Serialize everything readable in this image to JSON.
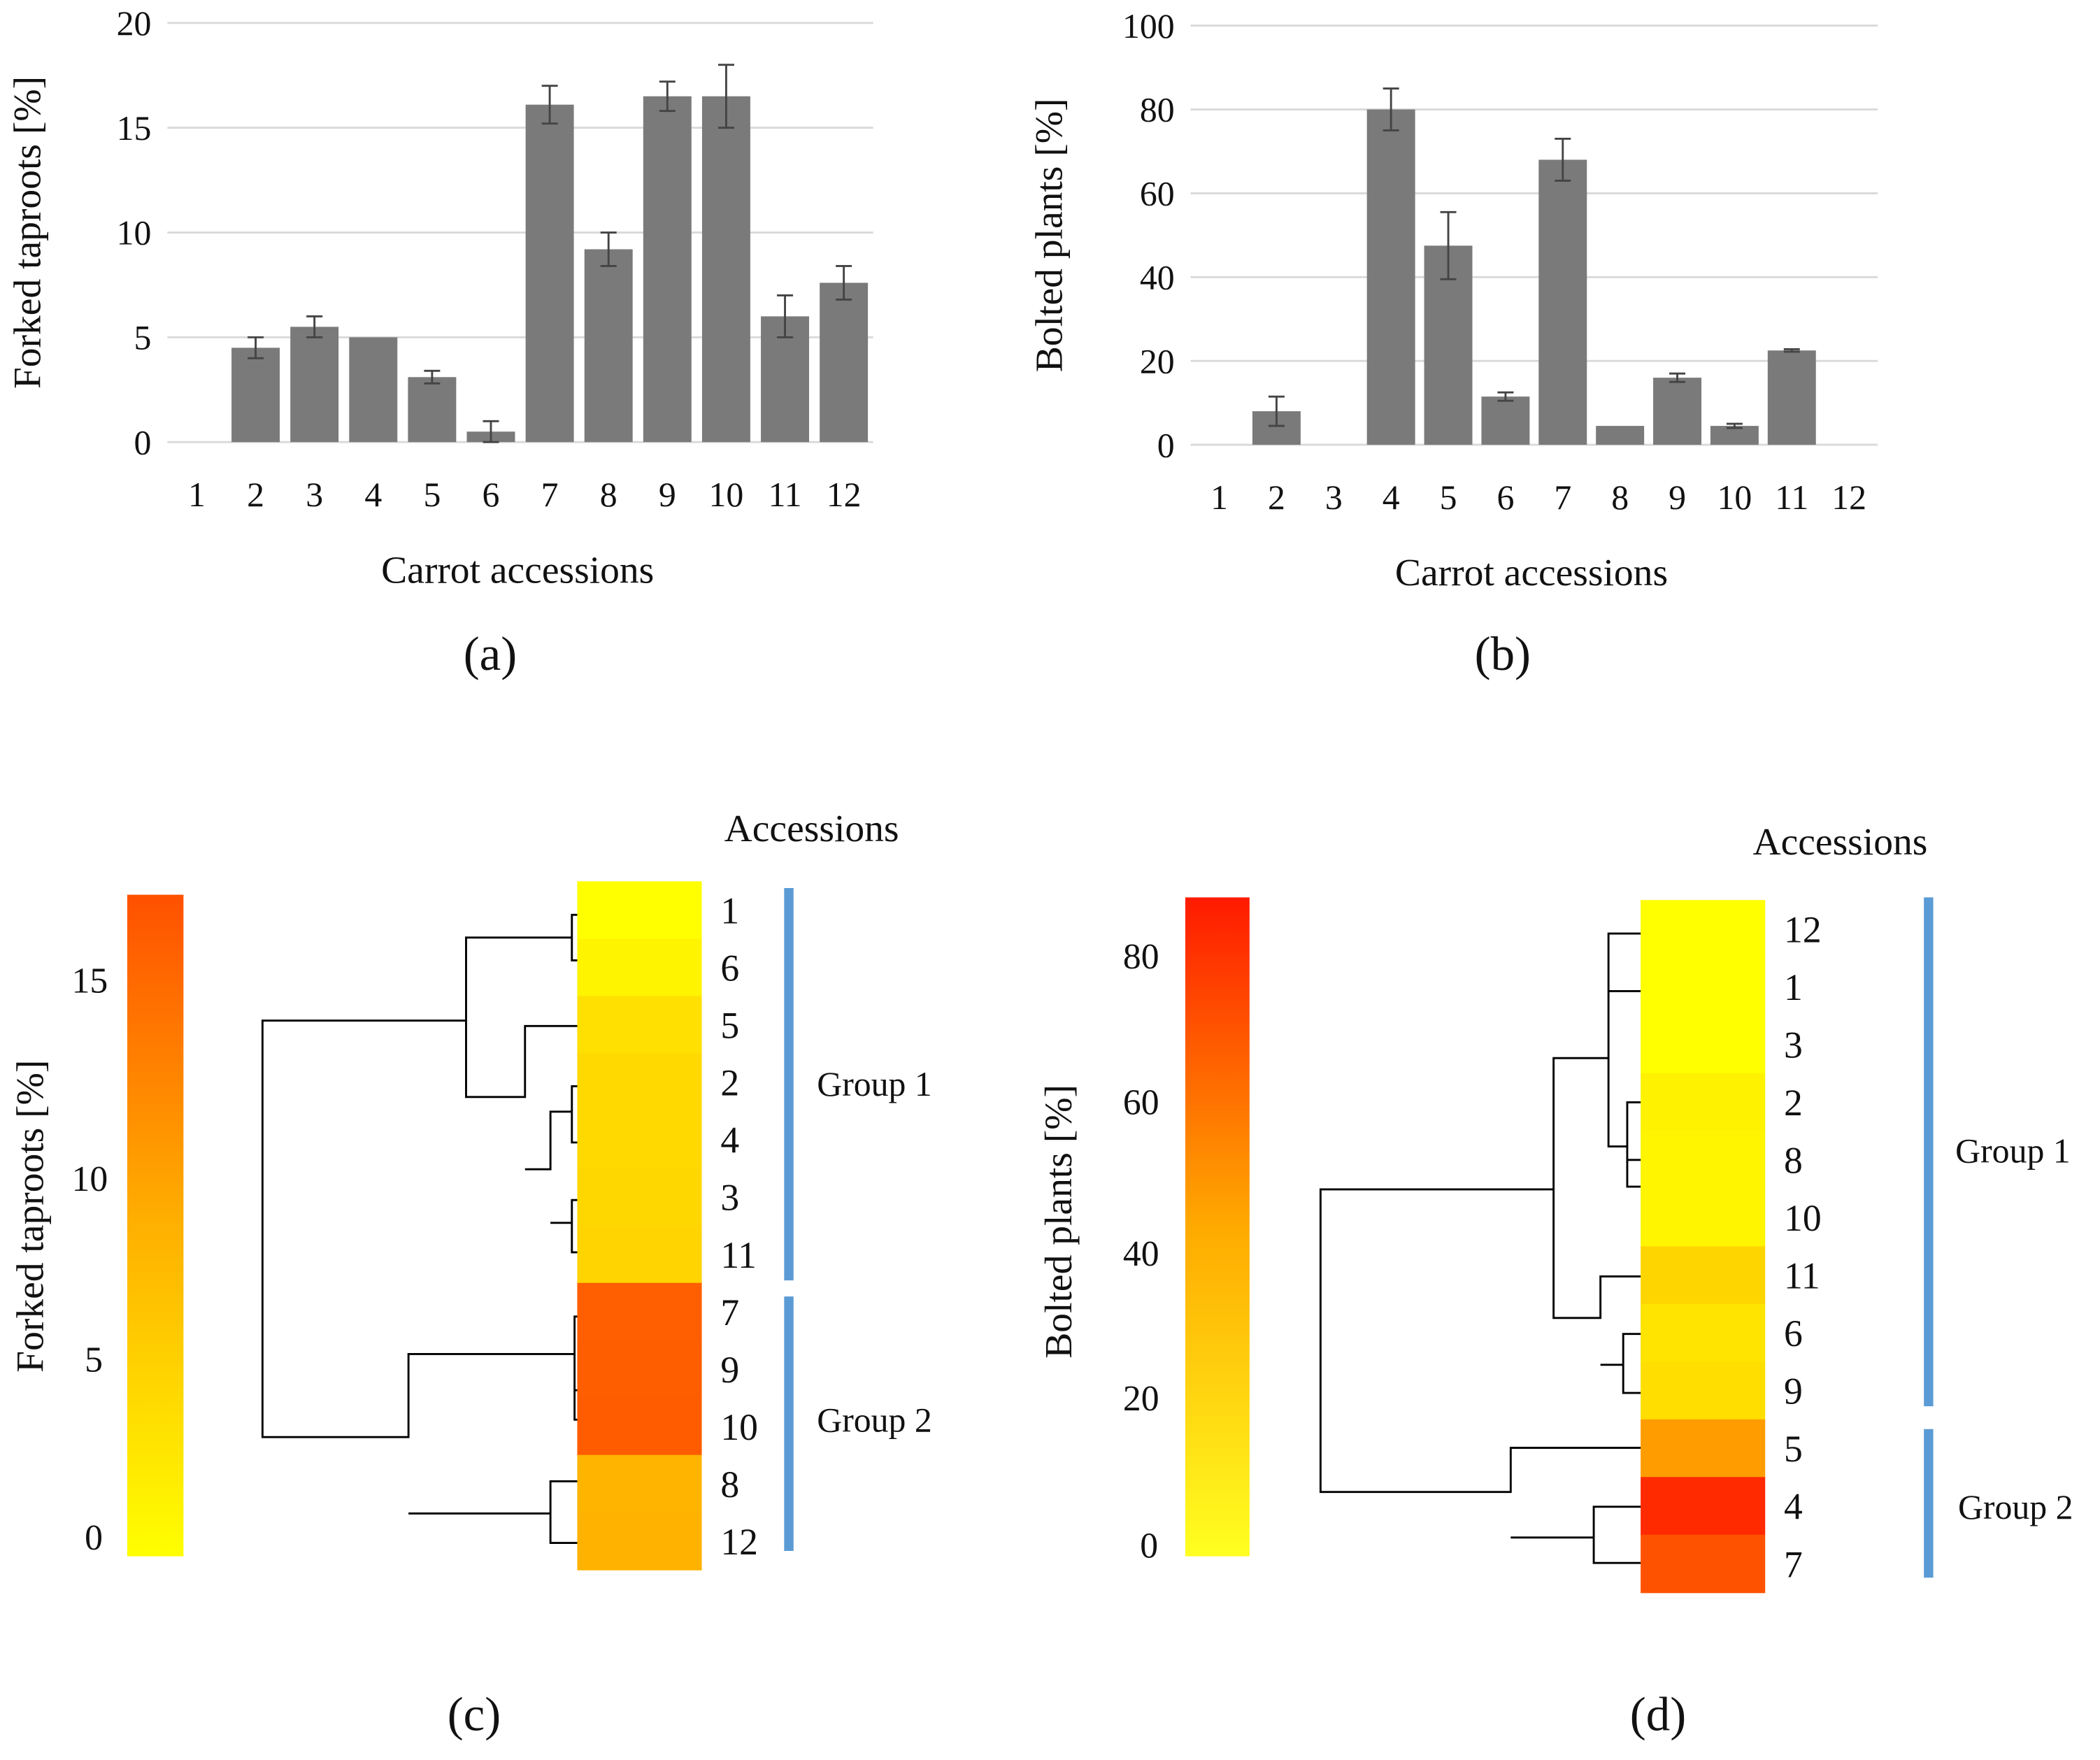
{
  "chart_data": [
    {
      "type": "bar",
      "panel": "(a)",
      "ylabel": "Forked taproots [%]",
      "xlabel": "Carrot accessions",
      "ylim": [
        0,
        20
      ],
      "yticks": [
        "0",
        "5",
        "10",
        "15",
        "20"
      ],
      "categories": [
        "1",
        "2",
        "3",
        "4",
        "5",
        "6",
        "7",
        "8",
        "9",
        "10",
        "11",
        "12"
      ],
      "values": [
        0,
        4.5,
        5.5,
        5.0,
        3.1,
        0.5,
        16.1,
        9.2,
        16.5,
        16.5,
        6.0,
        7.6
      ],
      "errors": [
        0,
        0.5,
        0.5,
        0,
        0.3,
        0.5,
        0.9,
        0.8,
        0.7,
        1.5,
        1.0,
        0.8
      ],
      "grid": true,
      "bar_color": "#7a7a7a"
    },
    {
      "type": "bar",
      "panel": "(b)",
      "ylabel": "Bolted plants [%]",
      "xlabel": "Carrot accessions",
      "ylim": [
        0,
        100
      ],
      "yticks": [
        "0",
        "20",
        "40",
        "60",
        "80",
        "100"
      ],
      "categories": [
        "1",
        "2",
        "3",
        "4",
        "5",
        "6",
        "7",
        "8",
        "9",
        "10",
        "11",
        "12"
      ],
      "values": [
        0,
        8,
        0,
        80,
        47.5,
        11.5,
        68,
        4.5,
        16,
        4.5,
        22.5,
        0
      ],
      "errors": [
        0,
        3.5,
        0,
        5,
        8,
        1,
        5,
        0,
        1,
        0.5,
        0.3,
        0
      ],
      "grid": true,
      "bar_color": "#7a7a7a"
    },
    {
      "type": "heatmap",
      "panel": "(c)",
      "title": "Accessions",
      "colorbar_label": "Forked taproots [%]",
      "colorbar_ticks": [
        "0",
        "5",
        "10",
        "15"
      ],
      "rows": [
        "1",
        "6",
        "5",
        "2",
        "4",
        "3",
        "11",
        "7",
        "9",
        "10",
        "8",
        "12"
      ],
      "colors": [
        "#ffff00",
        "#fff400",
        "#ffe000",
        "#ffd900",
        "#ffd900",
        "#ffd700",
        "#ffd400",
        "#ff5f00",
        "#ff5e00",
        "#ff5c00",
        "#ffb400",
        "#ffb300"
      ],
      "groups": [
        {
          "label": "Group 1",
          "members": [
            "1",
            "6",
            "5",
            "2",
            "4",
            "3",
            "11"
          ]
        },
        {
          "label": "Group 2",
          "members": [
            "7",
            "9",
            "10",
            "8",
            "12"
          ]
        }
      ]
    },
    {
      "type": "heatmap",
      "panel": "(d)",
      "title": "Accessions",
      "colorbar_label": "Bolted plants [%]",
      "colorbar_ticks": [
        "0",
        "20",
        "40",
        "60",
        "80"
      ],
      "rows": [
        "12",
        "1",
        "3",
        "2",
        "8",
        "10",
        "11",
        "6",
        "9",
        "5",
        "4",
        "7"
      ],
      "colors": [
        "#ffff00",
        "#ffff00",
        "#ffff00",
        "#fff200",
        "#fff500",
        "#fff500",
        "#ffd500",
        "#ffe400",
        "#ffde00",
        "#ff9c00",
        "#ff2a00",
        "#ff5200"
      ],
      "groups": [
        {
          "label": "Group 1",
          "members": [
            "12",
            "1",
            "3",
            "2",
            "8",
            "10",
            "11",
            "6",
            "9"
          ]
        },
        {
          "label": "Group 2",
          "members": [
            "5",
            "4",
            "7"
          ]
        }
      ]
    }
  ]
}
